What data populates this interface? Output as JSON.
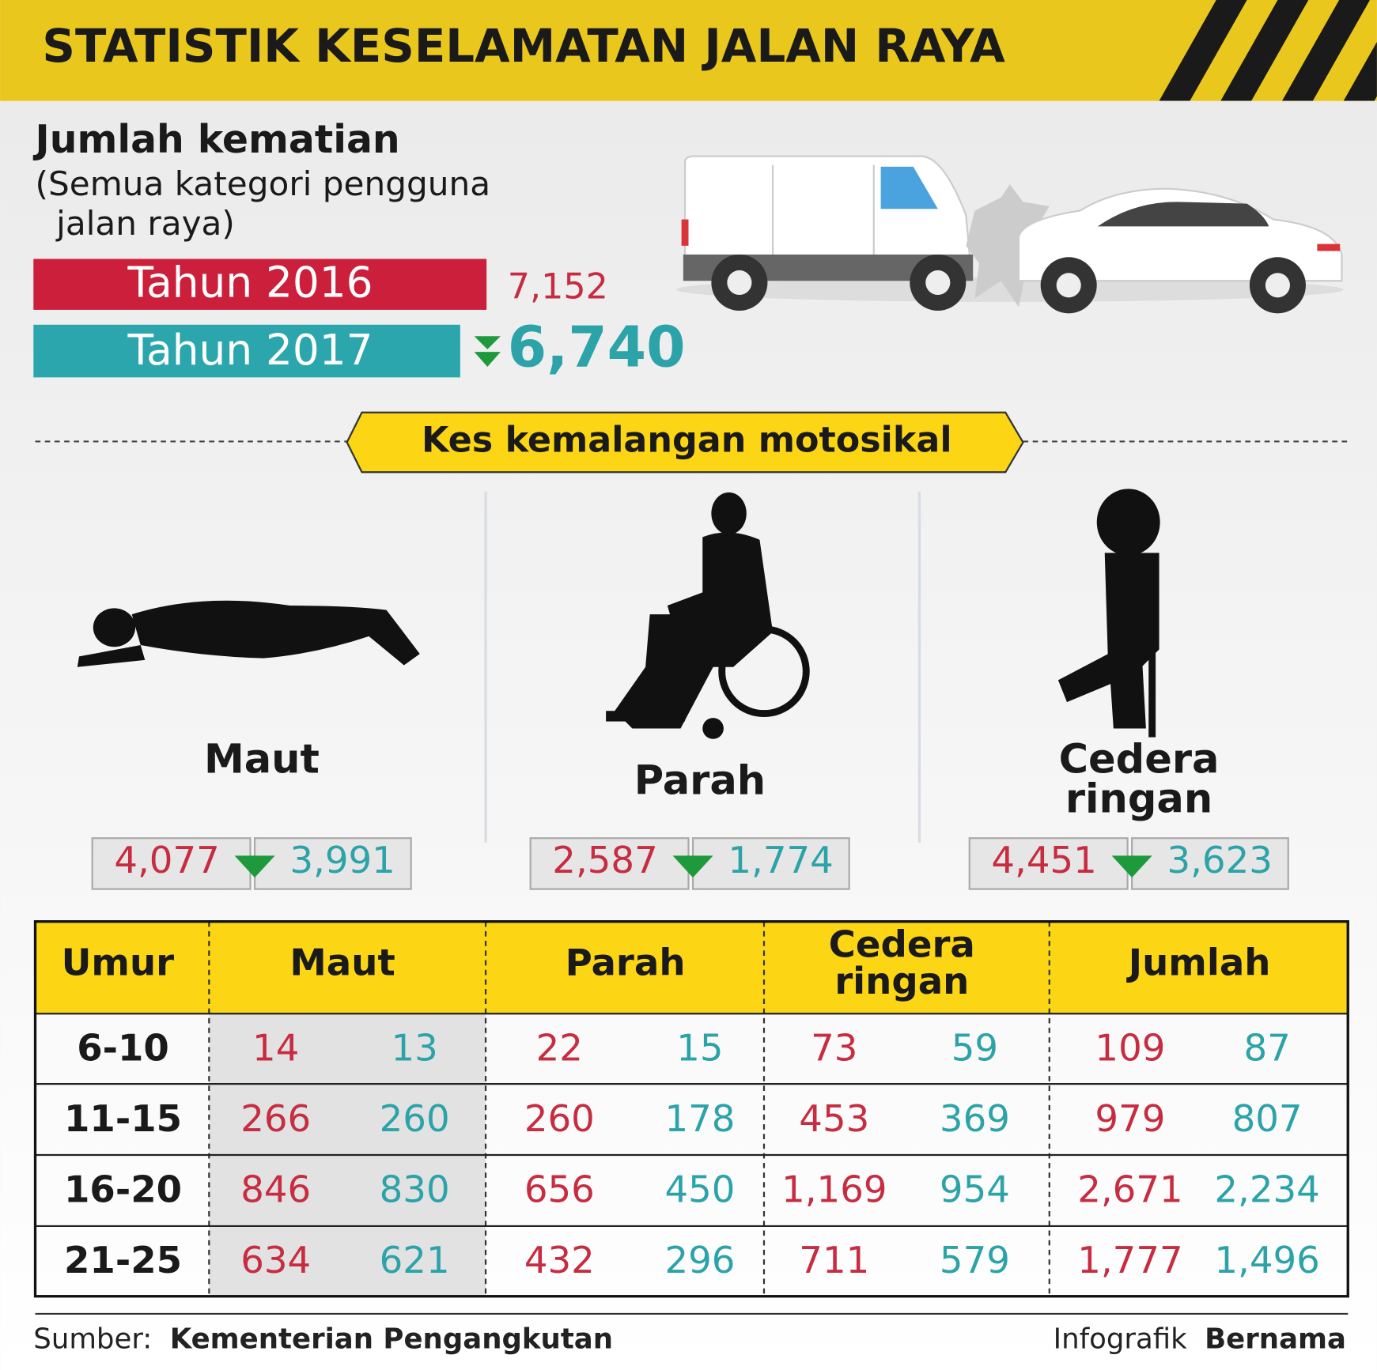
{
  "header": {
    "title": "STATISTIK KESELAMATAN JALAN RAYA"
  },
  "deaths": {
    "title": "Jumlah kematian",
    "subtitle": [
      "(Semua kategori pengguna",
      "jalan raya)"
    ],
    "rows": [
      {
        "label": "Tahun 2016",
        "value": "7,152"
      },
      {
        "label": "Tahun 2017",
        "value": "6,740"
      }
    ]
  },
  "section": {
    "title": "Kes kemalangan motosikal"
  },
  "categories": [
    {
      "label": [
        "Maut"
      ],
      "v2016": "4,077",
      "v2017": "3,991"
    },
    {
      "label": [
        "Parah"
      ],
      "v2016": "2,587",
      "v2017": "1,774"
    },
    {
      "label": [
        "Cedera",
        "ringan"
      ],
      "v2016": "4,451",
      "v2017": "3,623"
    }
  ],
  "table": {
    "headers": [
      [
        "Umur"
      ],
      [
        "Maut"
      ],
      [
        "Parah"
      ],
      [
        "Cedera",
        "ringan"
      ],
      [
        "Jumlah"
      ]
    ],
    "rows": [
      [
        "6-10",
        "14",
        "13",
        "22",
        "15",
        "73",
        "59",
        "109",
        "87"
      ],
      [
        "11-15",
        "266",
        "260",
        "260",
        "178",
        "453",
        "369",
        "979",
        "807"
      ],
      [
        "16-20",
        "846",
        "830",
        "656",
        "450",
        "1,169",
        "954",
        "2,671",
        "2,234"
      ],
      [
        "21-25",
        "634",
        "621",
        "432",
        "296",
        "711",
        "579",
        "1,777",
        "1,496"
      ]
    ]
  },
  "footer": {
    "source_label": "Sumber:",
    "source": "Kementerian Pengangkutan",
    "credit_label": "Infografik",
    "credit": "Bernama"
  }
}
